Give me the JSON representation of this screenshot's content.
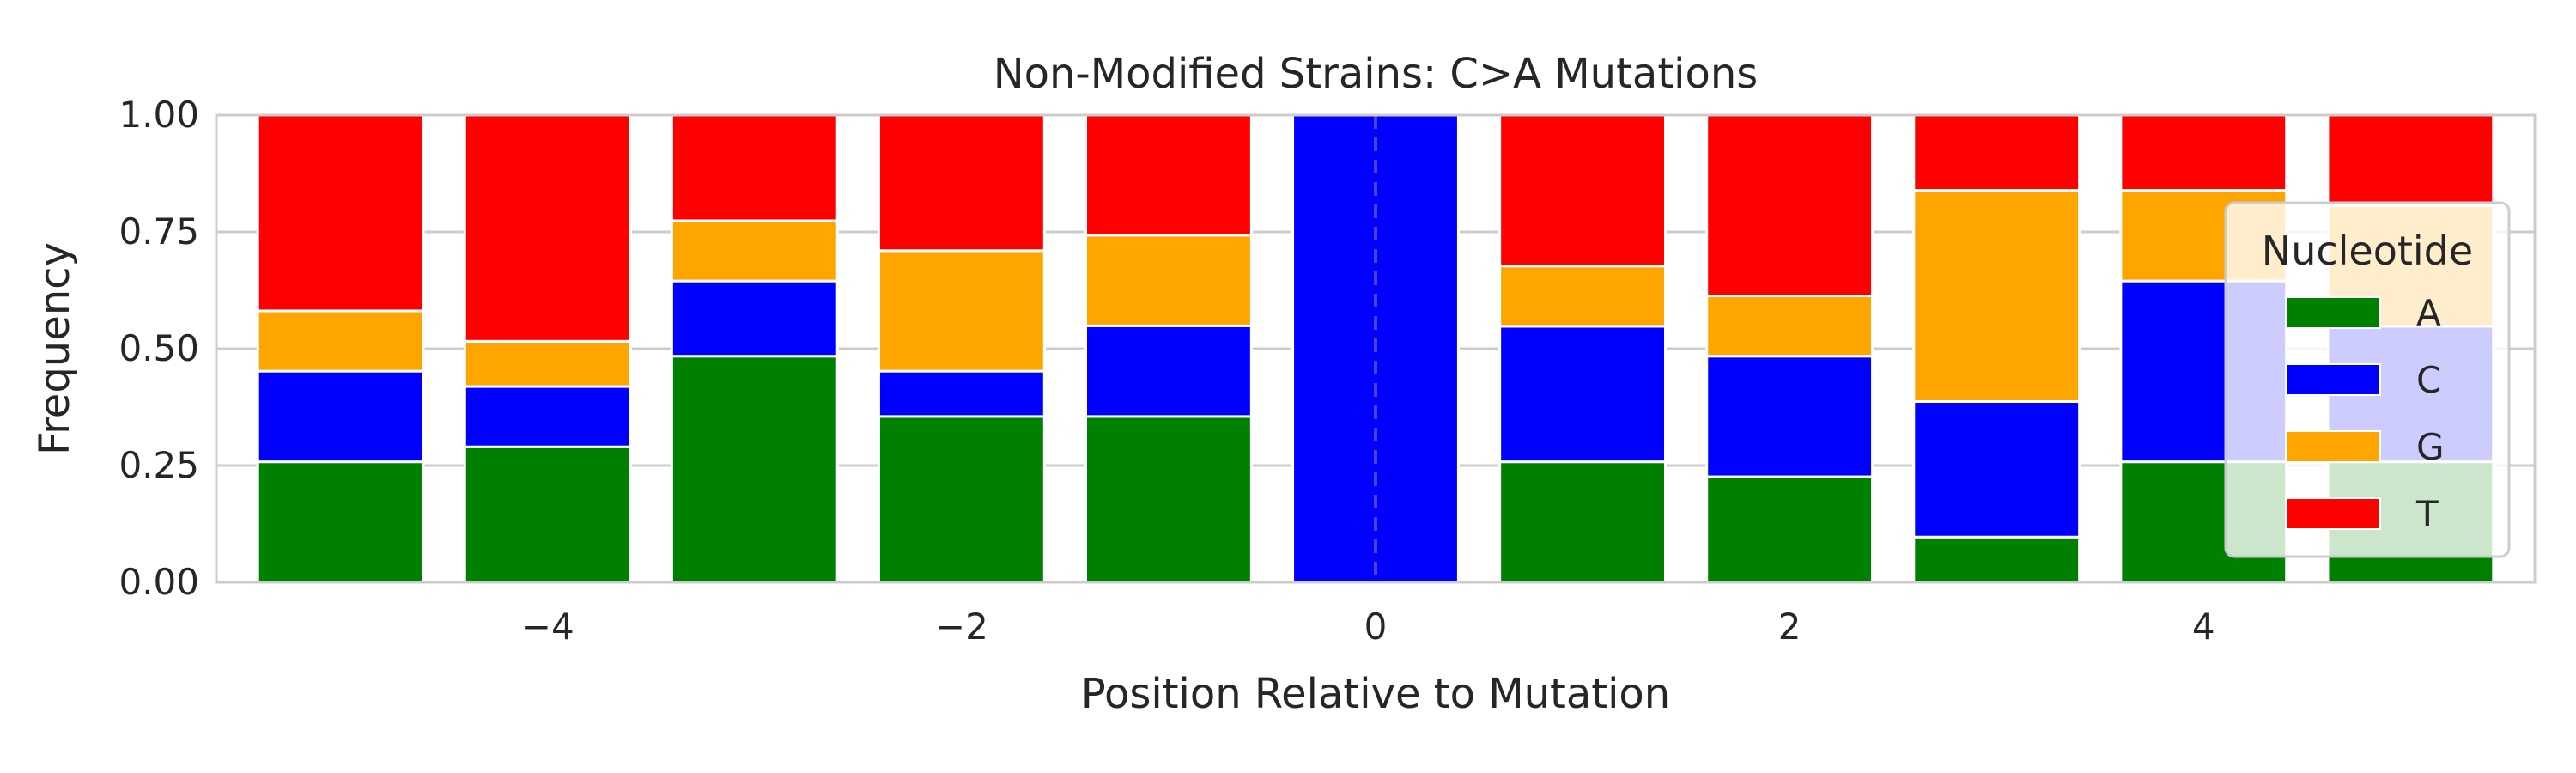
{
  "chart_data": {
    "type": "bar",
    "stacked": true,
    "title": "Non-Modified Strains: C>A Mutations",
    "xlabel": "Position Relative to Mutation",
    "ylabel": "Frequency",
    "x": [
      -5,
      -4,
      -3,
      -2,
      -1,
      0,
      1,
      2,
      3,
      4,
      5
    ],
    "xlim": [
      -5.6,
      5.6
    ],
    "ylim": [
      0,
      1
    ],
    "xticks": [
      -4,
      -2,
      0,
      2,
      4
    ],
    "xtick_labels": [
      "−4",
      "−2",
      "0",
      "2",
      "4"
    ],
    "yticks": [
      0,
      0.25,
      0.5,
      0.75,
      1.0
    ],
    "ytick_labels": [
      "0.00",
      "0.25",
      "0.50",
      "0.75",
      "1.00"
    ],
    "grid": "horizontal",
    "reference_line": {
      "x": 0,
      "style": "dashed"
    },
    "legend": {
      "title": "Nucleotide",
      "placement": "right"
    },
    "series": [
      {
        "name": "A",
        "color": "#008000",
        "values": [
          0.258,
          0.29,
          0.484,
          0.355,
          0.355,
          0.0,
          0.258,
          0.226,
          0.097,
          0.258,
          0.258
        ]
      },
      {
        "name": "C",
        "color": "#0000ff",
        "values": [
          0.194,
          0.129,
          0.161,
          0.097,
          0.194,
          1.0,
          0.29,
          0.258,
          0.29,
          0.387,
          0.29
        ]
      },
      {
        "name": "G",
        "color": "#ffa500",
        "values": [
          0.129,
          0.097,
          0.129,
          0.258,
          0.194,
          0.0,
          0.129,
          0.129,
          0.452,
          0.194,
          0.258
        ]
      },
      {
        "name": "T",
        "color": "#ff0000",
        "values": [
          0.419,
          0.484,
          0.226,
          0.29,
          0.258,
          0.0,
          0.323,
          0.387,
          0.161,
          0.161,
          0.194
        ]
      }
    ]
  }
}
